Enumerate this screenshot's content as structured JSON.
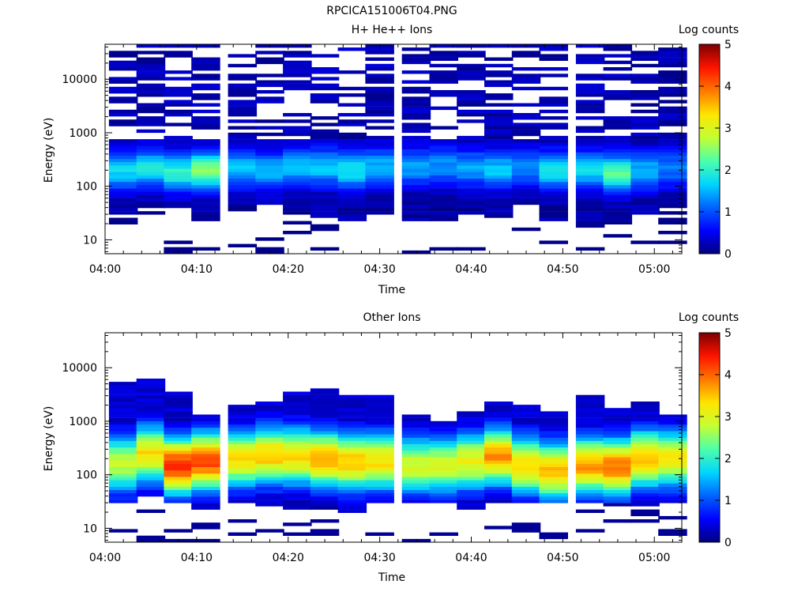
{
  "figure_title": "RPCICA151006T04.PNG",
  "colors": {
    "colormap": [
      "#00007f",
      "#0000ff",
      "#0063ff",
      "#00d5ff",
      "#4dffa9",
      "#c3ff34",
      "#ffe500",
      "#ff7a00",
      "#ff1300",
      "#7f0000"
    ]
  },
  "chart_data": [
    {
      "type": "heatmap",
      "title": "H+ He++ Ions",
      "xlabel": "Time",
      "ylabel": "Energy (eV)",
      "colorbar_label": "Log counts",
      "colorbar_ticks": [
        "0",
        "1",
        "2",
        "3",
        "4",
        "5"
      ],
      "clim": [
        0,
        5
      ],
      "x_ticks": [
        "04:00",
        "04:10",
        "04:20",
        "04:30",
        "04:40",
        "04:50",
        "05:00"
      ],
      "y_ticks": [
        "10",
        "100",
        "1000",
        "10000"
      ],
      "y_scale": "log",
      "ylim": [
        5.5,
        45000
      ],
      "xlim": [
        "04:00",
        "05:03"
      ],
      "time_bins": [
        "04:02",
        "04:05",
        "04:08",
        "04:11",
        "04:15",
        "04:18",
        "04:21",
        "04:24",
        "04:27",
        "04:30",
        "04:34",
        "04:37",
        "04:40",
        "04:43",
        "04:46",
        "04:49",
        "04:53",
        "04:56",
        "04:59",
        "05:02"
      ],
      "profile": {
        "peak_log_counts": [
          1.6,
          1.7,
          1.9,
          2.4,
          1.5,
          1.4,
          1.5,
          1.5,
          1.7,
          1.4,
          1.3,
          1.2,
          1.3,
          1.5,
          1.2,
          1.7,
          1.6,
          2.1,
          1.4,
          1.1
        ],
        "peak_energy_ev": [
          200,
          220,
          180,
          200,
          220,
          200,
          230,
          230,
          200,
          230,
          230,
          250,
          220,
          200,
          230,
          200,
          200,
          180,
          200,
          220
        ],
        "min_energy_ev": [
          28,
          40,
          40,
          22,
          35,
          45,
          28,
          25,
          22,
          30,
          22,
          22,
          28,
          28,
          45,
          22,
          18,
          20,
          30,
          40
        ]
      }
    },
    {
      "type": "heatmap",
      "title": "Other Ions",
      "xlabel": "Time",
      "ylabel": "Energy (eV)",
      "colorbar_label": "Log counts",
      "colorbar_ticks": [
        "0",
        "1",
        "2",
        "3",
        "4",
        "5"
      ],
      "clim": [
        0,
        5
      ],
      "x_ticks": [
        "04:00",
        "04:10",
        "04:20",
        "04:30",
        "04:40",
        "04:50",
        "05:00"
      ],
      "y_ticks": [
        "10",
        "100",
        "1000",
        "10000"
      ],
      "y_scale": "log",
      "ylim": [
        5.5,
        45000
      ],
      "xlim": [
        "04:00",
        "05:03"
      ],
      "time_bins": [
        "04:02",
        "04:05",
        "04:08",
        "04:11",
        "04:15",
        "04:18",
        "04:21",
        "04:24",
        "04:27",
        "04:30",
        "04:34",
        "04:37",
        "04:40",
        "04:43",
        "04:46",
        "04:49",
        "04:53",
        "04:56",
        "04:59",
        "05:02"
      ],
      "profile": {
        "peak_log_counts": [
          2.8,
          3.3,
          4.3,
          4.2,
          3.3,
          3.5,
          3.4,
          3.6,
          3.5,
          3.3,
          2.9,
          2.9,
          3.1,
          3.7,
          3.4,
          3.6,
          3.7,
          3.9,
          3.6,
          3.2
        ],
        "peak_energy_ev": [
          160,
          250,
          150,
          180,
          200,
          230,
          220,
          200,
          180,
          180,
          150,
          150,
          180,
          220,
          150,
          120,
          150,
          140,
          200,
          200
        ],
        "min_energy_ev": [
          30,
          40,
          30,
          22,
          28,
          25,
          22,
          25,
          20,
          28,
          28,
          30,
          22,
          28,
          30,
          30,
          28,
          28,
          25,
          28
        ],
        "max_energy_ev": [
          5500,
          6000,
          3500,
          1400,
          2000,
          2500,
          3500,
          4000,
          3000,
          3000,
          1300,
          1000,
          1500,
          2400,
          2000,
          1500,
          3000,
          1800,
          2400,
          1400
        ]
      }
    }
  ]
}
